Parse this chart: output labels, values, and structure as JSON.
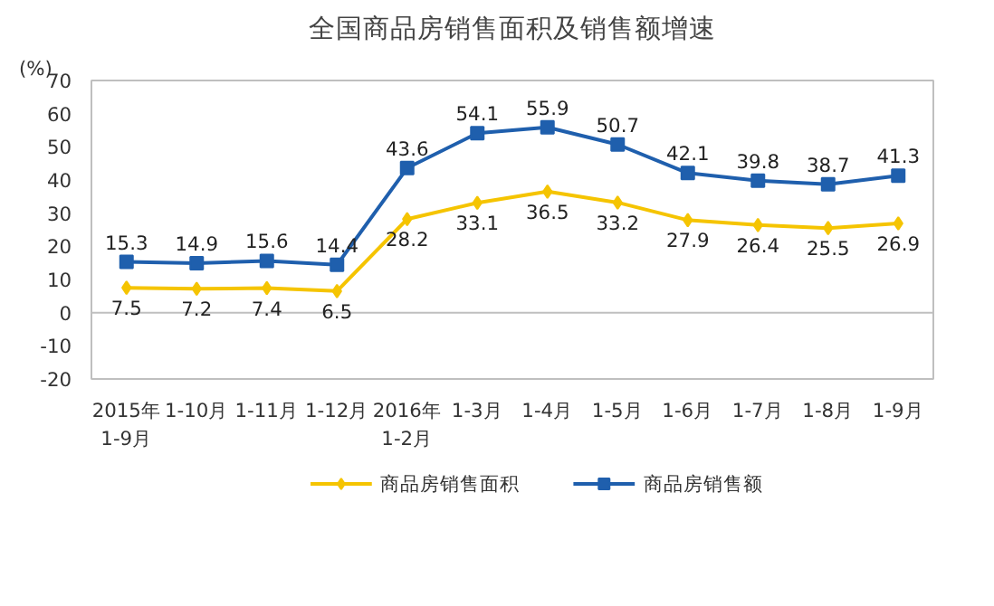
{
  "chart_data": {
    "type": "line",
    "title": "全国商品房销售面积及销售额增速",
    "ylabel": "(%)",
    "categories": [
      "2015年\n1-9月",
      "1-10月",
      "1-11月",
      "1-12月",
      "2016年\n1-2月",
      "1-3月",
      "1-4月",
      "1-5月",
      "1-6月",
      "1-7月",
      "1-8月",
      "1-9月"
    ],
    "series": [
      {
        "name": "商品房销售面积",
        "color": "#f5c400",
        "marker": "diamond",
        "values": [
          7.5,
          7.2,
          7.4,
          6.5,
          28.2,
          33.1,
          36.5,
          33.2,
          27.9,
          26.4,
          25.5,
          26.9
        ]
      },
      {
        "name": "商品房销售额",
        "color": "#1f5fad",
        "marker": "square",
        "values": [
          15.3,
          14.9,
          15.6,
          14.4,
          43.6,
          54.1,
          55.9,
          50.7,
          42.1,
          39.8,
          38.7,
          41.3
        ]
      }
    ],
    "ylim": [
      -20,
      70
    ],
    "yticks": [
      -20,
      -10,
      0,
      10,
      20,
      30,
      40,
      50,
      60,
      70
    ],
    "ref_lines": [
      {
        "axis": "y",
        "value": 0,
        "color": "#bfbfbf"
      }
    ],
    "grid": false,
    "legend": "bottom",
    "data_labels": true,
    "line_style": "solid"
  }
}
